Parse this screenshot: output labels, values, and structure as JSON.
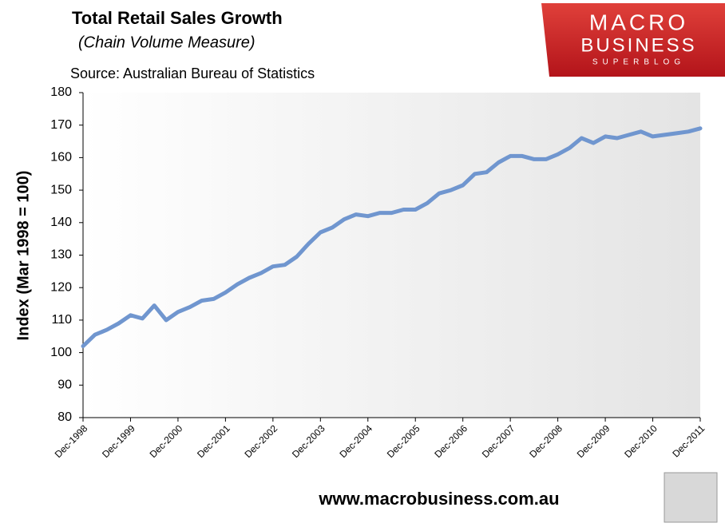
{
  "chart_data": {
    "type": "line",
    "title": "Total Retail Sales Growth",
    "subtitle": "(Chain Volume Measure)",
    "source": "Source: Australian Bureau of Statistics",
    "ylabel": "Index (Mar 1998 = 100)",
    "footer": "www.macrobusiness.com.au",
    "logo": [
      "MACRO",
      "BUSINESS",
      "SUPERBLOG"
    ],
    "color": "#7096cf",
    "categories": [
      "Dec-1998",
      null,
      null,
      null,
      "Dec-1999",
      null,
      null,
      null,
      "Dec-2000",
      null,
      null,
      null,
      "Dec-2001",
      null,
      null,
      null,
      "Dec-2002",
      null,
      null,
      null,
      "Dec-2003",
      null,
      null,
      null,
      "Dec-2004",
      null,
      null,
      null,
      "Dec-2005",
      null,
      null,
      null,
      "Dec-2006",
      null,
      null,
      null,
      "Dec-2007",
      null,
      null,
      null,
      "Dec-2008",
      null,
      null,
      null,
      "Dec-2009",
      null,
      null,
      null,
      "Dec-2010",
      null,
      null,
      null,
      "Dec-2011"
    ],
    "values": [
      102,
      105.5,
      107,
      109,
      111.5,
      110.5,
      114.5,
      110,
      112.5,
      114,
      116,
      116.5,
      118.5,
      121,
      123,
      124.5,
      126.5,
      127,
      129.5,
      133.5,
      137,
      138.5,
      141,
      142.5,
      142,
      143,
      143,
      144,
      144,
      146,
      149,
      150,
      151.5,
      155,
      155.5,
      158.5,
      160.5,
      160.5,
      159.5,
      159.5,
      161,
      163,
      166,
      164.5,
      166.5,
      166,
      167,
      168,
      166.5,
      167,
      167.5,
      168,
      169
    ],
    "ylim": [
      80,
      180
    ],
    "yticks": [
      80,
      90,
      100,
      110,
      120,
      130,
      140,
      150,
      160,
      170,
      180
    ],
    "grid": false
  }
}
